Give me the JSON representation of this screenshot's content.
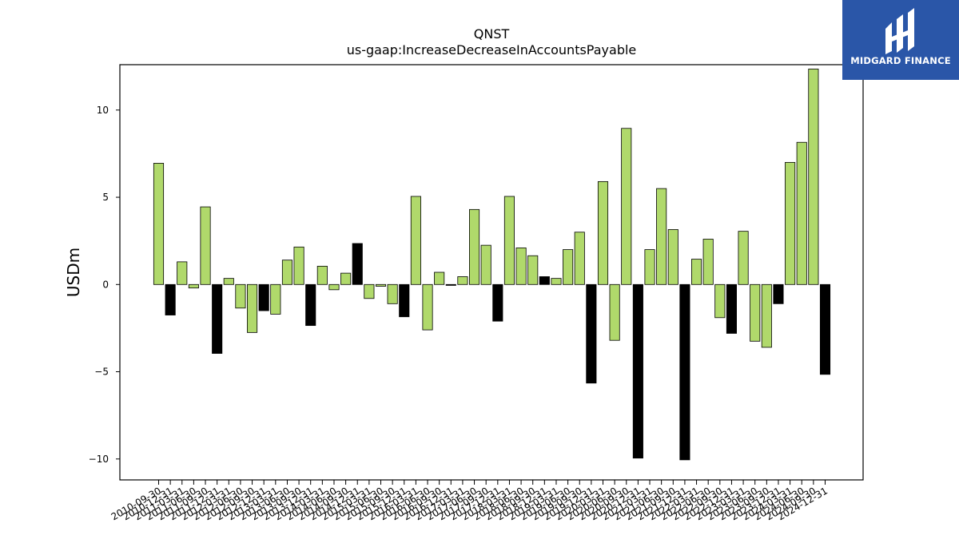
{
  "logo": {
    "text": "MIDGARD FINANCE",
    "icon": "midgard-logo-icon",
    "background": "#2a56a8"
  },
  "chart_data": {
    "type": "bar",
    "title": "QNST",
    "subtitle": "us-gaap:IncreaseDecreaseInAccountsPayable",
    "xlabel": "",
    "ylabel": "USDm",
    "ylim": [
      -11.2,
      12.6
    ],
    "yticks": [
      -10,
      -5,
      0,
      5,
      10
    ],
    "ytick_labels": [
      "−10",
      "−5",
      "0",
      "5",
      "10"
    ],
    "grid": false,
    "legend": "none",
    "colors": {
      "fiscal_q4": "#000000",
      "other": "#b0d96b",
      "edge": "#000000"
    },
    "categories": [
      "2010-09-30",
      "2010-12-31",
      "2011-03-31",
      "2011-06-30",
      "2011-09-30",
      "2011-12-31",
      "2012-03-31",
      "2012-06-30",
      "2012-09-30",
      "2012-12-31",
      "2013-03-31",
      "2013-06-30",
      "2013-09-30",
      "2013-12-31",
      "2014-03-31",
      "2014-06-30",
      "2014-09-30",
      "2014-12-31",
      "2015-03-31",
      "2015-06-30",
      "2015-09-30",
      "2015-12-31",
      "2016-03-31",
      "2016-06-30",
      "2016-09-30",
      "2016-12-31",
      "2017-03-31",
      "2017-06-30",
      "2017-09-30",
      "2017-12-31",
      "2018-03-31",
      "2018-06-30",
      "2018-09-30",
      "2018-12-31",
      "2019-03-31",
      "2019-06-30",
      "2019-09-30",
      "2019-12-31",
      "2020-03-31",
      "2020-06-30",
      "2020-09-30",
      "2020-12-31",
      "2021-03-31",
      "2021-06-30",
      "2021-09-30",
      "2021-12-31",
      "2022-03-31",
      "2022-06-30",
      "2022-09-30",
      "2022-12-31",
      "2023-03-31",
      "2023-06-30",
      "2023-09-30",
      "2023-12-31",
      "2024-03-31",
      "2024-06-30",
      "2024-09-30",
      "2024-12-31"
    ],
    "values": [
      6.95,
      -1.75,
      1.3,
      -0.2,
      4.45,
      -3.95,
      0.35,
      -1.35,
      -2.75,
      -1.5,
      -1.7,
      1.4,
      2.15,
      -2.35,
      1.05,
      -0.3,
      0.65,
      2.35,
      -0.8,
      -0.1,
      -1.1,
      -1.85,
      5.05,
      -2.6,
      0.7,
      -0.05,
      0.45,
      4.3,
      2.25,
      -2.1,
      5.05,
      2.1,
      1.65,
      0.45,
      0.35,
      2.0,
      3.0,
      -5.65,
      5.9,
      -3.2,
      8.95,
      -9.95,
      2.0,
      5.5,
      3.15,
      -10.05,
      1.45,
      2.6,
      -1.9,
      -2.8,
      3.05,
      -3.25,
      -3.6,
      -1.1,
      7.0,
      8.15,
      12.35,
      -5.15
    ],
    "highlight": [
      false,
      true,
      false,
      false,
      false,
      true,
      false,
      false,
      false,
      true,
      false,
      false,
      false,
      true,
      false,
      false,
      false,
      true,
      false,
      false,
      false,
      true,
      false,
      false,
      false,
      true,
      false,
      false,
      false,
      true,
      false,
      false,
      false,
      true,
      false,
      false,
      false,
      true,
      false,
      false,
      false,
      true,
      false,
      false,
      false,
      true,
      false,
      false,
      false,
      true,
      false,
      false,
      false,
      true,
      false,
      false,
      false,
      true
    ]
  }
}
